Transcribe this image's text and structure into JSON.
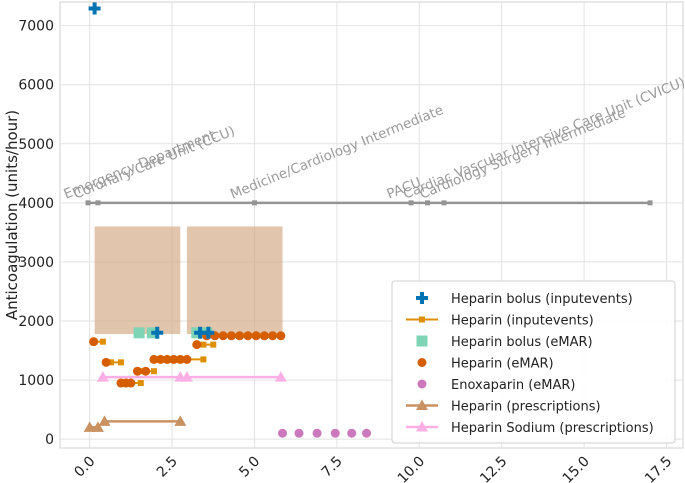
{
  "chart_data": {
    "type": "scatter",
    "title": "",
    "xlabel": "",
    "ylabel": "Anticoagulation (units/hour)",
    "xlim": [
      -0.9,
      18.0
    ],
    "ylim": [
      -150,
      7400
    ],
    "xticks": [
      0.0,
      2.5,
      5.0,
      7.5,
      10.0,
      12.5,
      15.0,
      17.5
    ],
    "xtick_labels": [
      "0.0",
      "2.5",
      "5.0",
      "7.5",
      "10.0",
      "12.5",
      "15.0",
      "17.5"
    ],
    "yticks": [
      0,
      1000,
      2000,
      3000,
      4000,
      5000,
      6000,
      7000
    ],
    "ytick_labels": [
      "0",
      "1000",
      "2000",
      "3000",
      "4000",
      "5000",
      "6000",
      "7000"
    ],
    "grid": true,
    "legend_position": "lower-right",
    "location_track": {
      "y": 4000,
      "color": "#949494",
      "stays": [
        {
          "name": "Emergency Department",
          "start": -0.05
        },
        {
          "name": "Coronary Care Unit (CCU)",
          "start": 0.25
        },
        {
          "name": "Medicine/Cardiology Intermediate",
          "start": 5.0
        },
        {
          "name": "PACU",
          "start": 9.75
        },
        {
          "name": "Cardiac Vascular Intensive Care Unit (CVICU)",
          "start": 10.25
        },
        {
          "name": "Cardiology Surgery Intermediate",
          "start": 10.75
        }
      ],
      "end": 17.0
    },
    "shaded_regions": [
      {
        "x0": 0.15,
        "x1": 2.75,
        "y0": 1780,
        "y1": 3600
      },
      {
        "x0": 2.95,
        "x1": 5.85,
        "y0": 1780,
        "y1": 3600
      }
    ],
    "series": [
      {
        "name": "Heparin bolus (inputevents)",
        "marker": "plus",
        "color": "#0173b2",
        "points": [
          [
            0.15,
            7290
          ],
          [
            2.05,
            1800
          ],
          [
            3.35,
            1800
          ],
          [
            3.6,
            1800
          ]
        ]
      },
      {
        "name": "Heparin (inputevents)",
        "marker": "square-line",
        "color": "#de8f05",
        "segments": [
          [
            [
              0.15,
              1650
            ],
            [
              0.4,
              1650
            ]
          ],
          [
            [
              0.65,
              1300
            ],
            [
              0.95,
              1300
            ]
          ],
          [
            [
              0.95,
              950
            ],
            [
              1.55,
              950
            ]
          ],
          [
            [
              1.55,
              1150
            ],
            [
              1.95,
              1150
            ]
          ],
          [
            [
              2.05,
              1350
            ],
            [
              3.45,
              1350
            ]
          ],
          [
            [
              3.45,
              1600
            ],
            [
              3.75,
              1600
            ]
          ]
        ]
      },
      {
        "name": "Heparin bolus (eMAR)",
        "marker": "square",
        "color": "#7fd4b5",
        "points": [
          [
            1.5,
            1800
          ],
          [
            1.9,
            1800
          ],
          [
            3.25,
            1800
          ],
          [
            3.55,
            1800
          ]
        ]
      },
      {
        "name": "Heparin (eMAR)",
        "marker": "circle",
        "color": "#d55e00",
        "points": [
          [
            0.12,
            1650
          ],
          [
            0.5,
            1300
          ],
          [
            0.95,
            950
          ],
          [
            1.1,
            950
          ],
          [
            1.25,
            950
          ],
          [
            1.45,
            1150
          ],
          [
            1.7,
            1150
          ],
          [
            1.95,
            1350
          ],
          [
            2.15,
            1350
          ],
          [
            2.35,
            1350
          ],
          [
            2.55,
            1350
          ],
          [
            2.75,
            1350
          ],
          [
            2.95,
            1350
          ],
          [
            3.25,
            1600
          ],
          [
            3.55,
            1750
          ],
          [
            3.8,
            1750
          ],
          [
            4.05,
            1750
          ],
          [
            4.3,
            1750
          ],
          [
            4.55,
            1750
          ],
          [
            4.8,
            1750
          ],
          [
            5.05,
            1750
          ],
          [
            5.3,
            1750
          ],
          [
            5.55,
            1750
          ],
          [
            5.8,
            1750
          ]
        ]
      },
      {
        "name": "Enoxaparin (eMAR)",
        "marker": "circle",
        "color": "#cc78bc",
        "points": [
          [
            5.85,
            100
          ],
          [
            6.35,
            100
          ],
          [
            6.9,
            100
          ],
          [
            7.45,
            100
          ],
          [
            7.95,
            100
          ],
          [
            8.4,
            100
          ]
        ]
      },
      {
        "name": "Heparin (prescriptions)",
        "marker": "triangle-line",
        "color": "#ca9161",
        "segments": [
          [
            [
              0.0,
              200
            ],
            [
              0.25,
              200
            ]
          ],
          [
            [
              0.45,
              300
            ],
            [
              2.75,
              300
            ]
          ]
        ]
      },
      {
        "name": "Heparin Sodium (prescriptions)",
        "marker": "triangle-line",
        "color": "#fbafe4",
        "segments": [
          [
            [
              0.4,
              1050
            ],
            [
              2.75,
              1050
            ]
          ],
          [
            [
              2.95,
              1050
            ],
            [
              5.8,
              1050
            ]
          ]
        ]
      }
    ]
  }
}
